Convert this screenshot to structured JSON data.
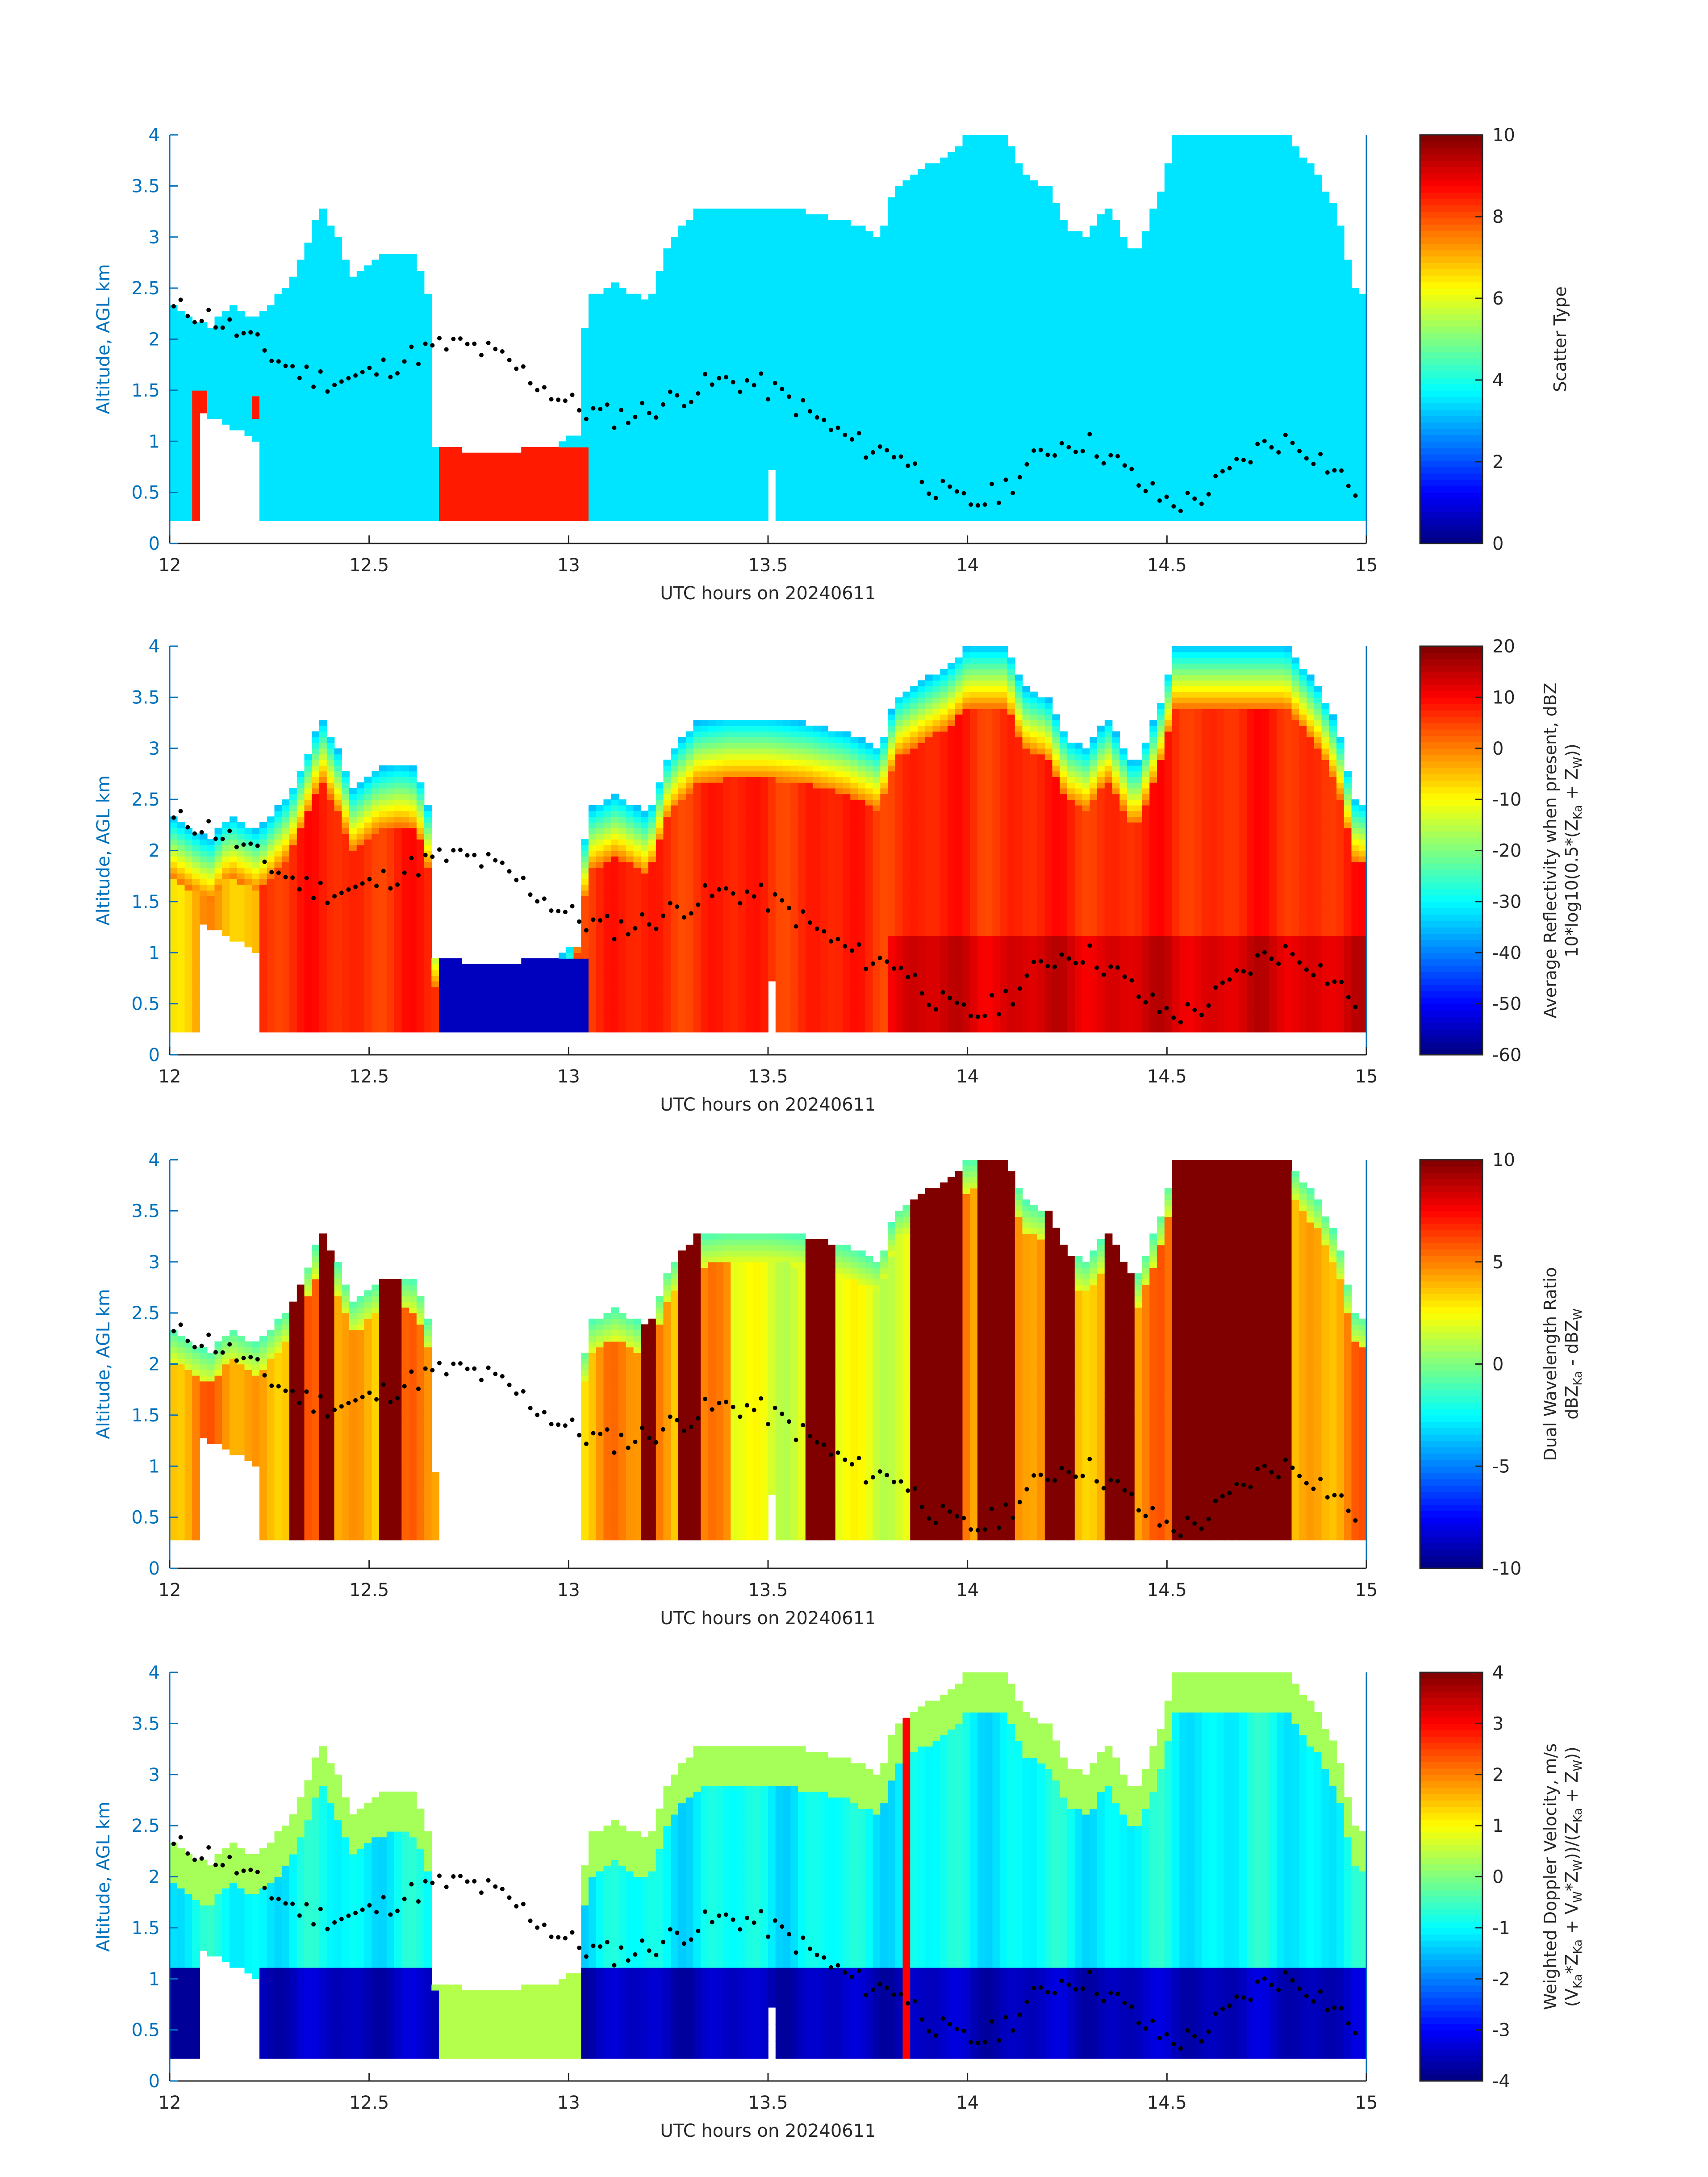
{
  "figure": {
    "xlabel": "UTC hours on 20240611",
    "ylabel": "Altitude, AGL km",
    "x_ticks": [
      "12",
      "12.5",
      "13",
      "13.5",
      "14",
      "14.5",
      "15"
    ],
    "y_ticks": [
      "0",
      "0.5",
      "1",
      "1.5",
      "2",
      "2.5",
      "3",
      "3.5",
      "4"
    ],
    "axis_color": "#0072BD"
  },
  "chart_data": [
    {
      "type": "heatmap",
      "field": "scatter_type",
      "xlim": [
        12,
        15
      ],
      "ylim": [
        0,
        4
      ],
      "xlabel": "UTC hours on 20240611",
      "ylabel": "Altitude, AGL km",
      "colorbar": {
        "label_lines": [
          "Scatter Type"
        ],
        "range": [
          0,
          10
        ],
        "ticks": [
          "0",
          "2",
          "4",
          "6",
          "8",
          "10"
        ]
      },
      "dominant_value": 3.5,
      "secondary_value": 8.5,
      "secondary_regions": [
        {
          "x": [
            12.05,
            12.1
          ],
          "y": [
            0.2,
            1.5
          ]
        },
        {
          "x": [
            12.2,
            12.22
          ],
          "y": [
            1.25,
            1.45
          ]
        },
        {
          "x": [
            12.67,
            13.05
          ],
          "y": [
            0.2,
            0.95
          ]
        }
      ],
      "cloud_top_km": [
        [
          12.0,
          2.35
        ],
        [
          12.1,
          2.1
        ],
        [
          12.15,
          2.35
        ],
        [
          12.22,
          2.2
        ],
        [
          12.3,
          2.55
        ],
        [
          12.35,
          3.0
        ],
        [
          12.38,
          3.3
        ],
        [
          12.42,
          3.0
        ],
        [
          12.46,
          2.6
        ],
        [
          12.52,
          2.8
        ],
        [
          12.58,
          2.85
        ],
        [
          12.62,
          2.8
        ],
        [
          12.65,
          2.4
        ],
        [
          12.67,
          0.95
        ],
        [
          12.75,
          0.9
        ],
        [
          12.85,
          0.9
        ],
        [
          12.95,
          0.95
        ],
        [
          13.0,
          1.0
        ],
        [
          13.05,
          2.4
        ],
        [
          13.12,
          2.55
        ],
        [
          13.2,
          2.35
        ],
        [
          13.25,
          2.95
        ],
        [
          13.32,
          3.25
        ],
        [
          13.4,
          3.3
        ],
        [
          13.5,
          3.3
        ],
        [
          13.6,
          3.25
        ],
        [
          13.7,
          3.15
        ],
        [
          13.78,
          3.0
        ],
        [
          13.82,
          3.5
        ],
        [
          13.88,
          3.65
        ],
        [
          13.95,
          3.8
        ],
        [
          14.0,
          4.0
        ],
        [
          14.1,
          4.0
        ],
        [
          14.14,
          3.6
        ],
        [
          14.2,
          3.5
        ],
        [
          14.25,
          3.1
        ],
        [
          14.3,
          3.0
        ],
        [
          14.35,
          3.3
        ],
        [
          14.42,
          2.8
        ],
        [
          14.48,
          3.4
        ],
        [
          14.52,
          4.0
        ],
        [
          14.6,
          4.0
        ],
        [
          14.7,
          4.0
        ],
        [
          14.8,
          4.0
        ],
        [
          14.88,
          3.6
        ],
        [
          14.93,
          3.2
        ],
        [
          14.97,
          2.5
        ],
        [
          15.0,
          2.45
        ]
      ],
      "gaps": [
        {
          "x": [
            12.07,
            12.23
          ],
          "y_top": 1.3
        },
        {
          "x": [
            12.67,
            12.82
          ],
          "y_top": 4.0,
          "y_bottom": 0.95
        },
        {
          "x": [
            12.82,
            13.04
          ],
          "y_top": 2.55,
          "y_bottom": 1.05
        },
        {
          "x": [
            13.5,
            13.52
          ],
          "y_top": 0.75
        }
      ],
      "cloud_base_km": 0.2,
      "marker_dots": true
    },
    {
      "type": "heatmap",
      "field": "average_reflectivity_dBZ",
      "xlim": [
        12,
        15
      ],
      "ylim": [
        0,
        4
      ],
      "xlabel": "UTC hours on 20240611",
      "ylabel": "Altitude, AGL km",
      "colorbar": {
        "label_lines": [
          "Average Reflectivity when present, dBZ",
          "10*log10(0.5*(Z",
          "Ka",
          " + Z",
          "W",
          "))"
        ],
        "range": [
          -60,
          20
        ],
        "ticks": [
          "-60",
          "-50",
          "-40",
          "-30",
          "-20",
          "-10",
          "0",
          "10",
          "20"
        ]
      },
      "core_value_dBZ": 8,
      "edge_value_dBZ": -35,
      "low_echo_value_dBZ": -55,
      "low_echo_region": {
        "x": [
          12.67,
          13.05
        ],
        "y": [
          0.2,
          0.95
        ]
      },
      "marker_dots": true
    },
    {
      "type": "heatmap",
      "field": "dual_wavelength_ratio_dB",
      "xlim": [
        12,
        15
      ],
      "ylim": [
        0,
        4
      ],
      "xlabel": "UTC hours on 20240611",
      "ylabel": "Altitude, AGL km",
      "colorbar": {
        "label_lines": [
          "Dual Wavelength Ratio",
          "dBZ",
          "Ka",
          " - dBZ",
          "W"
        ],
        "range": [
          -10,
          10
        ],
        "ticks": [
          "-10",
          "-5",
          "0",
          "5",
          "10"
        ]
      },
      "high_value_dB": 10,
      "mid_value_dB": 4,
      "low_value_dB": 1,
      "saturated_columns": [
        [
          12.38,
          12.42
        ],
        [
          12.3,
          12.34
        ],
        [
          12.53,
          12.58
        ],
        [
          13.18,
          13.22
        ],
        [
          13.28,
          13.34
        ],
        [
          13.6,
          13.66
        ],
        [
          13.85,
          13.98
        ],
        [
          14.02,
          14.12
        ],
        [
          14.2,
          14.26
        ],
        [
          14.35,
          14.42
        ],
        [
          14.52,
          14.82
        ]
      ],
      "marker_dots": true
    },
    {
      "type": "heatmap",
      "field": "weighted_doppler_velocity_m_s",
      "xlim": [
        12,
        15
      ],
      "ylim": [
        0,
        4
      ],
      "xlabel": "UTC hours on 20240611",
      "ylabel": "Altitude, AGL km",
      "colorbar": {
        "label_lines": [
          "Weighted Doppler Velocity, m/s",
          "(V",
          "Ka",
          "*Z",
          "Ka",
          " + V",
          "W",
          "*Z",
          "W",
          "))/(Z",
          "Ka",
          " + Z",
          "W",
          "))"
        ],
        "range": [
          -4,
          4
        ],
        "ticks": [
          "-4",
          "-3",
          "-2",
          "-1",
          "0",
          "1",
          "2",
          "3",
          "4"
        ]
      },
      "below_1km_value": -3.8,
      "upper_cloud_value": -1.0,
      "cloud_top_value": 0.3,
      "marker_dots": true
    }
  ]
}
